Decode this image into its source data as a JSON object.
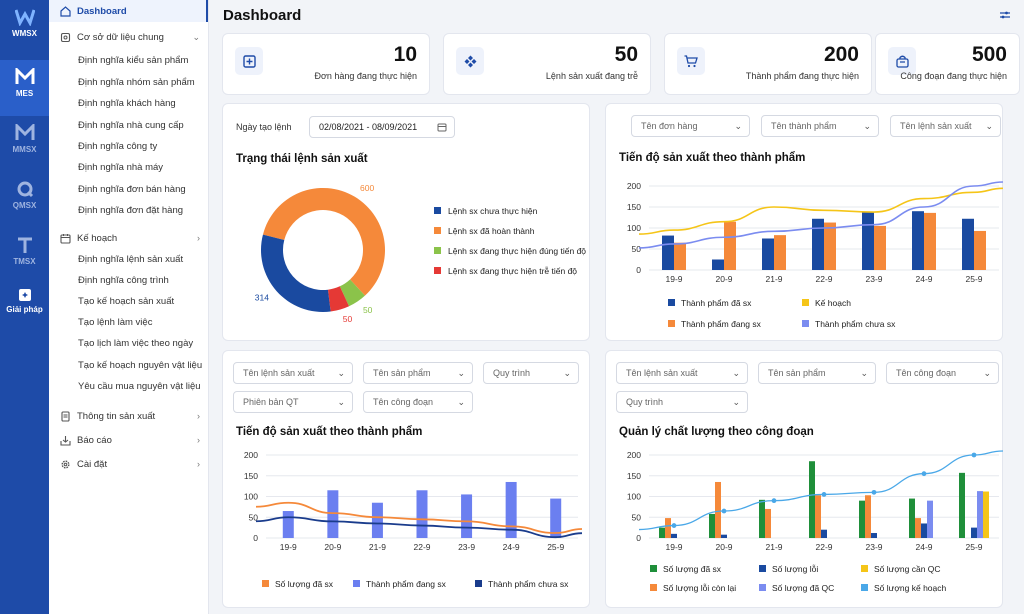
{
  "rail": [
    {
      "label": "WMSX",
      "icon": "wmsx-logo-icon"
    },
    {
      "label": "MES",
      "icon": "mes-logo-icon",
      "active": true
    },
    {
      "label": "MMSX",
      "icon": "mmsx-logo-icon"
    },
    {
      "label": "QMSX",
      "icon": "qmsx-logo-icon"
    },
    {
      "label": "TMSX",
      "icon": "tmsx-logo-icon"
    },
    {
      "label": "Giải pháp",
      "icon": "solution-icon"
    }
  ],
  "sidebar": {
    "dashboard": "Dashboard",
    "master_data": "Cơ sở dữ liệu chung",
    "master_items": [
      "Định nghĩa kiểu sản phẩm",
      "Định nghĩa nhóm sản phẩm",
      "Định nghĩa khách hàng",
      "Định nghĩa nhà cung cấp",
      "Định nghĩa công ty",
      "Định nghĩa nhà máy",
      "Định nghĩa đơn bán hàng",
      "Định nghĩa đơn đặt hàng"
    ],
    "plan": "Kế hoạch",
    "plan_items": [
      "Định nghĩa lệnh sản xuất",
      "Định nghĩa công trình",
      "Tạo kế hoạch sản xuất",
      "Tạo lệnh làm việc",
      "Tạo lịch làm việc theo ngày",
      "Tạo kế hoạch nguyên vật liệu",
      "Yêu cầu mua nguyên vật liệu"
    ],
    "production_info": "Thông tin sản xuất",
    "reports": "Báo cáo",
    "settings": "Cài đặt"
  },
  "header": {
    "title": "Dashboard"
  },
  "kpis": [
    {
      "value": "10",
      "label": "Đơn hàng đang thực hiện",
      "icon": "plus-box-icon"
    },
    {
      "value": "50",
      "label": "Lệnh sản xuất đang trễ",
      "icon": "grid-diamond-icon"
    },
    {
      "value": "200",
      "label": "Thành phẩm đang thực hiện",
      "icon": "cart-icon"
    },
    {
      "value": "500",
      "label": "Công đoạn đang thực hiện",
      "icon": "bag-icon"
    }
  ],
  "status_card": {
    "date_label": "Ngày tạo lệnh",
    "date_value": "02/08/2021 - 08/09/2021",
    "title": "Trạng thái lệnh sản xuất"
  },
  "progress_card": {
    "filters": [
      "Tên đơn hàng",
      "Tên thành phẩm",
      "Tên lệnh sản xuất"
    ],
    "title": "Tiến độ sản xuất theo thành phẩm"
  },
  "progress2_card": {
    "filters": [
      "Tên lệnh sản xuất",
      "Tên sản phẩm",
      "Quy trình",
      "Phiên bản QT",
      "Tên công đoạn"
    ],
    "title": "Tiến độ sản xuất theo thành phẩm"
  },
  "quality_card": {
    "filters": [
      "Tên lệnh sản xuất",
      "Tên sản phẩm",
      "Tên công đoạn",
      "Quy trình"
    ],
    "title": "Quản lý chất lượng theo công đoạn"
  },
  "colors": {
    "navy": "#1a4aa0",
    "orange": "#f5893a",
    "green": "#8bc34a",
    "red": "#e53935",
    "yellow": "#f5c518",
    "lightblue": "#7b8cf0",
    "dgreen": "#1f8f3a",
    "sky": "#4aa8e8",
    "blue": "#6b7ff0"
  },
  "chart_data": [
    {
      "type": "pie",
      "title": "Trạng thái lệnh sản xuất",
      "labels": [
        "Lệnh sx chưa thực hiện",
        "Lệnh sx đã hoàn thành",
        "Lệnh sx đang thực hiện đúng tiến độ",
        "Lệnh sx đang thực hiện trễ tiến độ"
      ],
      "values": [
        314,
        600,
        50,
        50
      ],
      "colors": [
        "#1a4aa0",
        "#f5893a",
        "#8bc34a",
        "#e53935"
      ],
      "legend": "right"
    },
    {
      "type": "bar",
      "title": "Tiến độ sản xuất theo thành phẩm",
      "categories": [
        "19-9",
        "20-9",
        "21-9",
        "22-9",
        "23-9",
        "24-9",
        "25-9"
      ],
      "ylim": [
        0,
        200
      ],
      "yticks": [
        0,
        50,
        100,
        150,
        200
      ],
      "series": [
        {
          "name": "Thành phẩm đã sx",
          "kind": "bar",
          "color": "#1a4aa0",
          "values": [
            82,
            25,
            75,
            122,
            138,
            140,
            122
          ]
        },
        {
          "name": "Thành phẩm đang sx",
          "kind": "bar",
          "color": "#f5893a",
          "values": [
            65,
            115,
            83,
            113,
            105,
            136,
            93
          ]
        },
        {
          "name": "Kế hoạch",
          "kind": "line",
          "color": "#f5c518",
          "values": [
            95,
            115,
            150,
            142,
            138,
            170,
            185
          ]
        },
        {
          "name": "Thành phẩm chưa sx",
          "kind": "line",
          "color": "#7b8cf0",
          "values": [
            62,
            78,
            92,
            100,
            108,
            150,
            200
          ]
        }
      ],
      "legend": "bottom"
    },
    {
      "type": "bar",
      "title": "Tiến độ sản xuất theo thành phẩm",
      "categories": [
        "19-9",
        "20-9",
        "21-9",
        "22-9",
        "23-9",
        "24-9",
        "25-9"
      ],
      "ylim": [
        0,
        200
      ],
      "yticks": [
        0,
        50,
        100,
        150,
        200
      ],
      "series": [
        {
          "name": "Số lượng đã sx",
          "kind": "line",
          "color": "#f5893a",
          "values": [
            85,
            60,
            50,
            45,
            40,
            28,
            12
          ]
        },
        {
          "name": "Thành phẩm đang sx",
          "kind": "bar",
          "color": "#6b7ff0",
          "values": [
            65,
            115,
            85,
            115,
            105,
            135,
            95
          ]
        },
        {
          "name": "Thành phẩm chưa sx",
          "kind": "line",
          "color": "#1a3c8c",
          "values": [
            50,
            40,
            35,
            30,
            25,
            20,
            2
          ]
        }
      ],
      "legend": "bottom"
    },
    {
      "type": "bar",
      "title": "Quản lý chất lượng theo công đoạn",
      "categories": [
        "19-9",
        "20-9",
        "21-9",
        "22-9",
        "23-9",
        "24-9",
        "25-9"
      ],
      "ylim": [
        0,
        200
      ],
      "yticks": [
        0,
        50,
        100,
        150,
        200
      ],
      "series": [
        {
          "name": "Số lượng đã sx",
          "kind": "bar",
          "color": "#1f8f3a",
          "values": [
            25,
            58,
            92,
            185,
            90,
            95,
            157
          ]
        },
        {
          "name": "Số lượng lỗi còn lại",
          "kind": "bar",
          "color": "#f5893a",
          "values": [
            48,
            135,
            70,
            103,
            103,
            48,
            0
          ]
        },
        {
          "name": "Số lượng lỗi",
          "kind": "bar",
          "color": "#1a4aa0",
          "values": [
            10,
            8,
            0,
            20,
            12,
            35,
            25
          ]
        },
        {
          "name": "Số lượng đã QC",
          "kind": "bar",
          "color": "#7b8cf0",
          "values": [
            0,
            0,
            0,
            0,
            0,
            90,
            113
          ]
        },
        {
          "name": "Số lượng cần QC",
          "kind": "bar",
          "color": "#f5c518",
          "values": [
            0,
            0,
            0,
            0,
            0,
            0,
            112
          ]
        },
        {
          "name": "Số lượng kế hoạch",
          "kind": "line",
          "color": "#4aa8e8",
          "values": [
            30,
            65,
            90,
            105,
            110,
            155,
            200
          ]
        }
      ],
      "legend": "bottom"
    }
  ]
}
